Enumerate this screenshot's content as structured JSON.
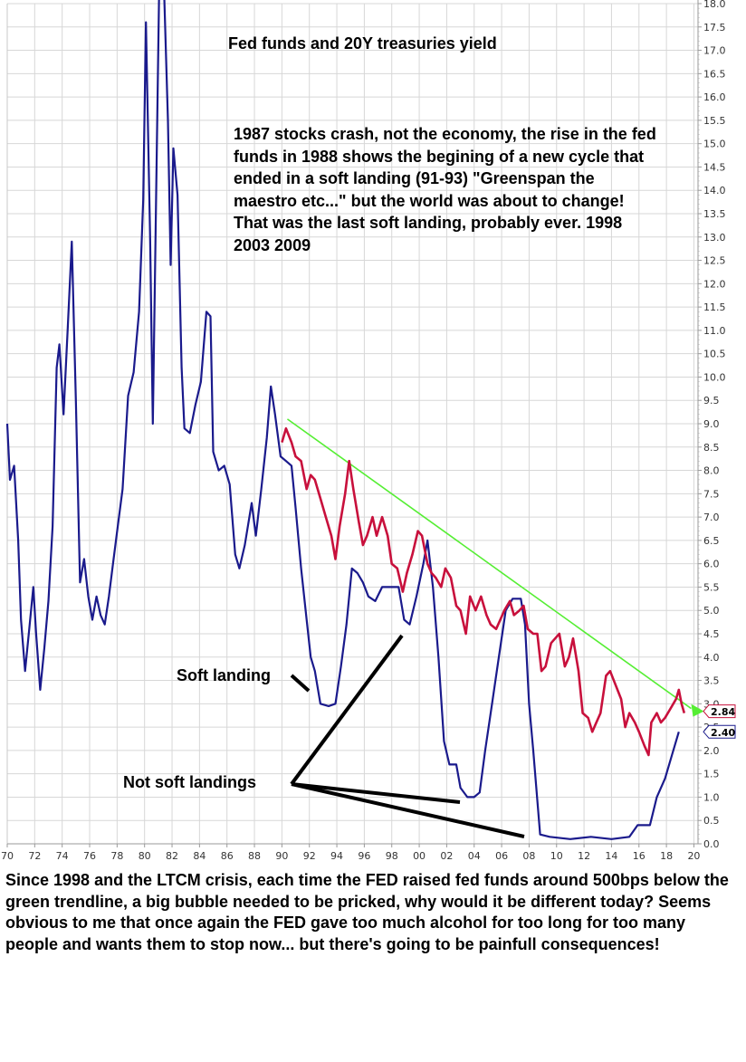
{
  "chart_data": {
    "type": "line",
    "title": "Fed funds and 20Y treasuries yield",
    "xlabel": "",
    "ylabel": "",
    "x_tick_labels": [
      "70",
      "72",
      "74",
      "76",
      "78",
      "80",
      "82",
      "84",
      "86",
      "88",
      "90",
      "92",
      "94",
      "96",
      "98",
      "00",
      "02",
      "04",
      "06",
      "08",
      "10",
      "12",
      "14",
      "16",
      "18",
      "20"
    ],
    "y_tick_labels": [
      "0.0",
      "0.5",
      "1.0",
      "1.5",
      "2.0",
      "2.5",
      "3.0",
      "3.5",
      "4.0",
      "4.5",
      "5.0",
      "5.5",
      "6.0",
      "6.5",
      "7.0",
      "7.5",
      "8.0",
      "8.5",
      "9.0",
      "9.5",
      "10.0",
      "10.5",
      "11.0",
      "11.5",
      "12.0",
      "12.5",
      "13.0",
      "13.5",
      "14.0",
      "14.5",
      "15.0",
      "15.5",
      "16.0",
      "16.5",
      "17.0",
      "17.5",
      "18.0"
    ],
    "xlim": [
      1970,
      2020.3
    ],
    "ylim": [
      0,
      18
    ],
    "grid": true,
    "series": [
      {
        "name": "",
        "color": "#1a1a8c",
        "points": [
          [
            1970.0,
            9.0
          ],
          [
            1970.2,
            7.8
          ],
          [
            1970.5,
            8.1
          ],
          [
            1970.8,
            6.5
          ],
          [
            1971.0,
            4.8
          ],
          [
            1971.3,
            3.7
          ],
          [
            1971.6,
            4.6
          ],
          [
            1971.9,
            5.5
          ],
          [
            1972.1,
            4.5
          ],
          [
            1972.4,
            3.3
          ],
          [
            1972.7,
            4.2
          ],
          [
            1973.0,
            5.2
          ],
          [
            1973.3,
            6.8
          ],
          [
            1973.6,
            10.2
          ],
          [
            1973.8,
            10.7
          ],
          [
            1974.1,
            9.2
          ],
          [
            1974.4,
            11.0
          ],
          [
            1974.7,
            12.9
          ],
          [
            1975.0,
            9.5
          ],
          [
            1975.3,
            5.6
          ],
          [
            1975.6,
            6.1
          ],
          [
            1975.9,
            5.3
          ],
          [
            1976.2,
            4.8
          ],
          [
            1976.5,
            5.3
          ],
          [
            1976.8,
            4.9
          ],
          [
            1977.1,
            4.7
          ],
          [
            1977.4,
            5.3
          ],
          [
            1977.7,
            6.0
          ],
          [
            1978.0,
            6.7
          ],
          [
            1978.4,
            7.6
          ],
          [
            1978.8,
            9.6
          ],
          [
            1979.2,
            10.1
          ],
          [
            1979.6,
            11.4
          ],
          [
            1979.9,
            13.8
          ],
          [
            1980.1,
            17.6
          ],
          [
            1980.4,
            13.0
          ],
          [
            1980.6,
            9.0
          ],
          [
            1980.9,
            15.0
          ],
          [
            1981.1,
            19.1
          ],
          [
            1981.4,
            18.5
          ],
          [
            1981.7,
            15.5
          ],
          [
            1981.9,
            12.4
          ],
          [
            1982.1,
            14.9
          ],
          [
            1982.4,
            13.9
          ],
          [
            1982.7,
            10.2
          ],
          [
            1982.9,
            8.9
          ],
          [
            1983.3,
            8.8
          ],
          [
            1983.7,
            9.4
          ],
          [
            1984.1,
            9.9
          ],
          [
            1984.5,
            11.4
          ],
          [
            1984.8,
            11.3
          ],
          [
            1985.0,
            8.4
          ],
          [
            1985.4,
            8.0
          ],
          [
            1985.8,
            8.1
          ],
          [
            1986.2,
            7.7
          ],
          [
            1986.6,
            6.2
          ],
          [
            1986.9,
            5.9
          ],
          [
            1987.3,
            6.4
          ],
          [
            1987.8,
            7.3
          ],
          [
            1988.1,
            6.6
          ],
          [
            1988.5,
            7.6
          ],
          [
            1988.9,
            8.7
          ],
          [
            1989.2,
            9.8
          ],
          [
            1989.5,
            9.2
          ],
          [
            1989.9,
            8.3
          ],
          [
            1990.3,
            8.2
          ],
          [
            1990.7,
            8.1
          ],
          [
            1991.0,
            7.2
          ],
          [
            1991.4,
            5.9
          ],
          [
            1991.8,
            4.8
          ],
          [
            1992.1,
            4.0
          ],
          [
            1992.4,
            3.7
          ],
          [
            1992.8,
            3.0
          ],
          [
            1993.4,
            2.95
          ],
          [
            1993.9,
            3.0
          ],
          [
            1994.3,
            3.8
          ],
          [
            1994.7,
            4.7
          ],
          [
            1995.1,
            5.9
          ],
          [
            1995.5,
            5.8
          ],
          [
            1995.9,
            5.6
          ],
          [
            1996.3,
            5.3
          ],
          [
            1996.8,
            5.2
          ],
          [
            1997.3,
            5.5
          ],
          [
            1997.9,
            5.5
          ],
          [
            1998.5,
            5.5
          ],
          [
            1998.9,
            4.8
          ],
          [
            1999.3,
            4.7
          ],
          [
            1999.8,
            5.3
          ],
          [
            2000.3,
            6.0
          ],
          [
            2000.6,
            6.5
          ],
          [
            2001.0,
            5.5
          ],
          [
            2001.4,
            4.0
          ],
          [
            2001.8,
            2.2
          ],
          [
            2002.2,
            1.7
          ],
          [
            2002.7,
            1.7
          ],
          [
            2003.0,
            1.2
          ],
          [
            2003.5,
            1.0
          ],
          [
            2004.0,
            1.0
          ],
          [
            2004.4,
            1.1
          ],
          [
            2004.8,
            2.0
          ],
          [
            2005.3,
            3.0
          ],
          [
            2005.8,
            4.0
          ],
          [
            2006.3,
            5.0
          ],
          [
            2006.8,
            5.25
          ],
          [
            2007.4,
            5.25
          ],
          [
            2007.7,
            4.7
          ],
          [
            2008.0,
            3.0
          ],
          [
            2008.3,
            2.0
          ],
          [
            2008.8,
            0.2
          ],
          [
            2009.5,
            0.15
          ],
          [
            2011.0,
            0.1
          ],
          [
            2012.5,
            0.15
          ],
          [
            2014.0,
            0.1
          ],
          [
            2015.3,
            0.15
          ],
          [
            2015.9,
            0.4
          ],
          [
            2016.8,
            0.4
          ],
          [
            2017.3,
            1.0
          ],
          [
            2017.9,
            1.4
          ],
          [
            2018.4,
            1.9
          ],
          [
            2018.9,
            2.4
          ]
        ]
      },
      {
        "name": "",
        "color": "#c8103c",
        "points": [
          [
            1990.0,
            8.6
          ],
          [
            1990.3,
            8.9
          ],
          [
            1990.7,
            8.6
          ],
          [
            1991.0,
            8.3
          ],
          [
            1991.4,
            8.2
          ],
          [
            1991.8,
            7.6
          ],
          [
            1992.1,
            7.9
          ],
          [
            1992.4,
            7.8
          ],
          [
            1992.8,
            7.4
          ],
          [
            1993.2,
            7.0
          ],
          [
            1993.6,
            6.6
          ],
          [
            1993.9,
            6.1
          ],
          [
            1994.2,
            6.8
          ],
          [
            1994.6,
            7.5
          ],
          [
            1994.9,
            8.2
          ],
          [
            1995.2,
            7.6
          ],
          [
            1995.6,
            6.9
          ],
          [
            1995.9,
            6.4
          ],
          [
            1996.2,
            6.6
          ],
          [
            1996.6,
            7.0
          ],
          [
            1996.9,
            6.6
          ],
          [
            1997.3,
            7.0
          ],
          [
            1997.7,
            6.6
          ],
          [
            1998.0,
            6.0
          ],
          [
            1998.4,
            5.9
          ],
          [
            1998.8,
            5.4
          ],
          [
            1999.1,
            5.8
          ],
          [
            1999.5,
            6.2
          ],
          [
            1999.9,
            6.7
          ],
          [
            2000.2,
            6.6
          ],
          [
            2000.6,
            6.0
          ],
          [
            2000.9,
            5.8
          ],
          [
            2001.2,
            5.7
          ],
          [
            2001.6,
            5.5
          ],
          [
            2001.9,
            5.9
          ],
          [
            2002.3,
            5.7
          ],
          [
            2002.7,
            5.1
          ],
          [
            2003.0,
            5.0
          ],
          [
            2003.4,
            4.5
          ],
          [
            2003.7,
            5.3
          ],
          [
            2004.1,
            5.0
          ],
          [
            2004.5,
            5.3
          ],
          [
            2004.9,
            4.9
          ],
          [
            2005.2,
            4.7
          ],
          [
            2005.6,
            4.6
          ],
          [
            2005.9,
            4.8
          ],
          [
            2006.2,
            5.0
          ],
          [
            2006.6,
            5.2
          ],
          [
            2006.9,
            4.9
          ],
          [
            2007.3,
            5.0
          ],
          [
            2007.6,
            5.1
          ],
          [
            2007.9,
            4.6
          ],
          [
            2008.3,
            4.5
          ],
          [
            2008.6,
            4.5
          ],
          [
            2008.9,
            3.7
          ],
          [
            2009.2,
            3.8
          ],
          [
            2009.6,
            4.3
          ],
          [
            2009.9,
            4.4
          ],
          [
            2010.2,
            4.5
          ],
          [
            2010.6,
            3.8
          ],
          [
            2010.9,
            4.0
          ],
          [
            2011.2,
            4.4
          ],
          [
            2011.6,
            3.7
          ],
          [
            2011.9,
            2.8
          ],
          [
            2012.3,
            2.7
          ],
          [
            2012.6,
            2.4
          ],
          [
            2012.9,
            2.6
          ],
          [
            2013.2,
            2.8
          ],
          [
            2013.6,
            3.6
          ],
          [
            2013.9,
            3.7
          ],
          [
            2014.3,
            3.4
          ],
          [
            2014.7,
            3.1
          ],
          [
            2015.0,
            2.5
          ],
          [
            2015.3,
            2.8
          ],
          [
            2015.7,
            2.6
          ],
          [
            2016.0,
            2.4
          ],
          [
            2016.4,
            2.1
          ],
          [
            2016.7,
            1.9
          ],
          [
            2016.9,
            2.6
          ],
          [
            2017.3,
            2.8
          ],
          [
            2017.6,
            2.6
          ],
          [
            2017.9,
            2.7
          ],
          [
            2018.3,
            2.9
          ],
          [
            2018.7,
            3.1
          ],
          [
            2018.9,
            3.3
          ],
          [
            2019.1,
            3.0
          ],
          [
            2019.3,
            2.8
          ]
        ]
      }
    ],
    "trendline": {
      "color": "#55ee33",
      "from": [
        1990.4,
        9.1
      ],
      "to": [
        2020.2,
        2.84
      ]
    },
    "last_value_labels": [
      {
        "value": "2.84",
        "color": "#c8103c"
      },
      {
        "value": "2.40",
        "color": "#1a1a8c"
      }
    ],
    "annotations": {
      "commentary": "1987 stocks crash, not the economy, the rise in the fed funds in 1988 shows the begining of a new cycle that ended in a soft landing (91-93) \"Greenspan the maestro etc...\" but the world was about to change! That was the last soft landing, probably ever. 1998  2003 2009",
      "soft_landing": "Soft landing",
      "not_soft_landings": "Not soft landings"
    }
  },
  "footer_text": "Since 1998 and the LTCM crisis, each time the FED raised fed funds around 500bps below the green trendline, a big bubble needed to be pricked, why would it be different today? Seems obvious to me that once again the FED gave too much alcohol for too long for too many people and wants them to stop now... but there's going to be painfull consequences!"
}
